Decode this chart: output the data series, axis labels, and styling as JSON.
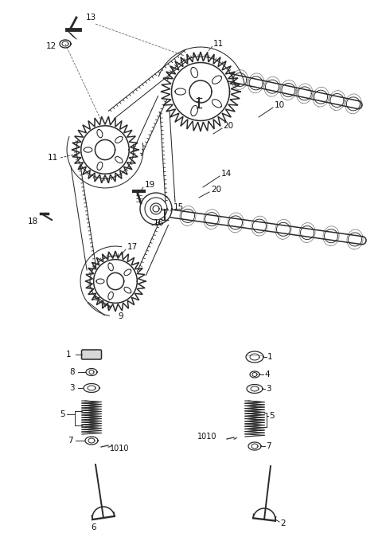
{
  "bg_color": "#ffffff",
  "line_color": "#2a2a2a",
  "label_color": "#111111",
  "fig_width": 4.8,
  "fig_height": 6.74,
  "dpi": 100
}
